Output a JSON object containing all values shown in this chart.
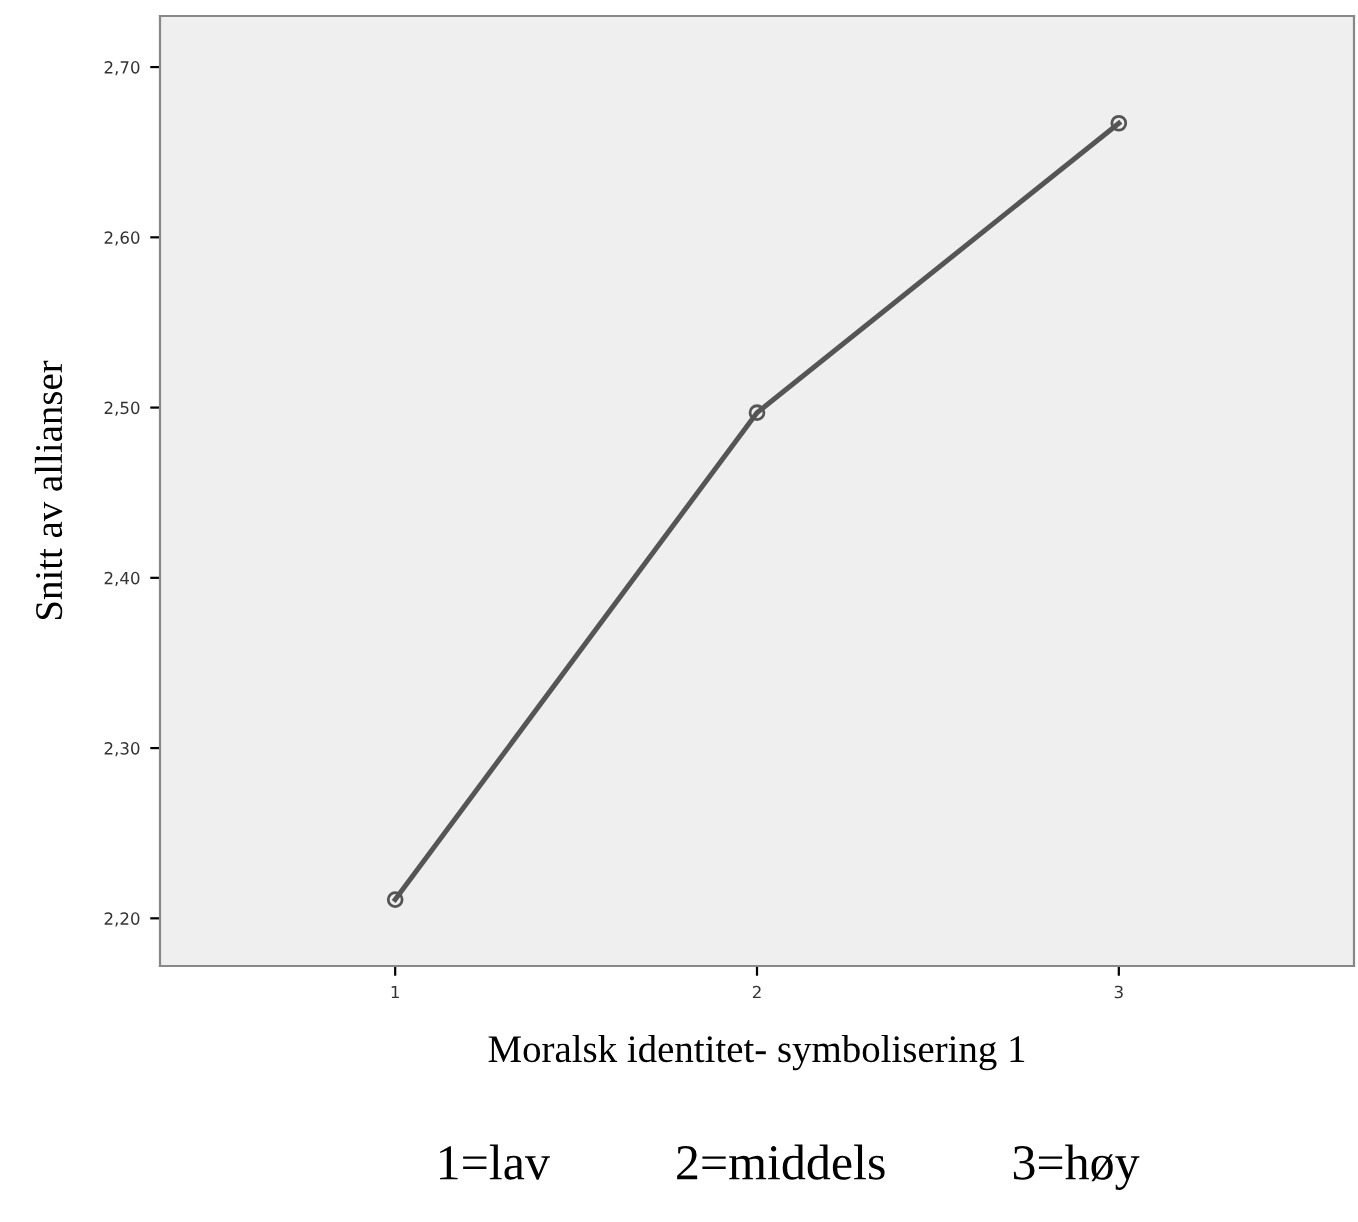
{
  "chart_data": {
    "type": "line",
    "categories": [
      "1",
      "2",
      "3"
    ],
    "series": [
      {
        "color": "#555555",
        "values": [
          2.211,
          2.497,
          2.667
        ]
      }
    ],
    "xlabel": "Moralsk identitet- symbolisering 1",
    "ylabel": "Snitt av allianser",
    "ylim": [
      2.172,
      2.73
    ],
    "yticks": [
      {
        "value": 2.2,
        "label": "2,20"
      },
      {
        "value": 2.3,
        "label": "2,30"
      },
      {
        "value": 2.4,
        "label": "2,40"
      },
      {
        "value": 2.5,
        "label": "2,50"
      },
      {
        "value": 2.6,
        "label": "2,60"
      },
      {
        "value": 2.7,
        "label": "2,70"
      }
    ],
    "marker": "circle",
    "line_style": "solid",
    "grid": false,
    "legend": false,
    "annotations": [
      "1=lav          2=middels          3=høy"
    ]
  }
}
